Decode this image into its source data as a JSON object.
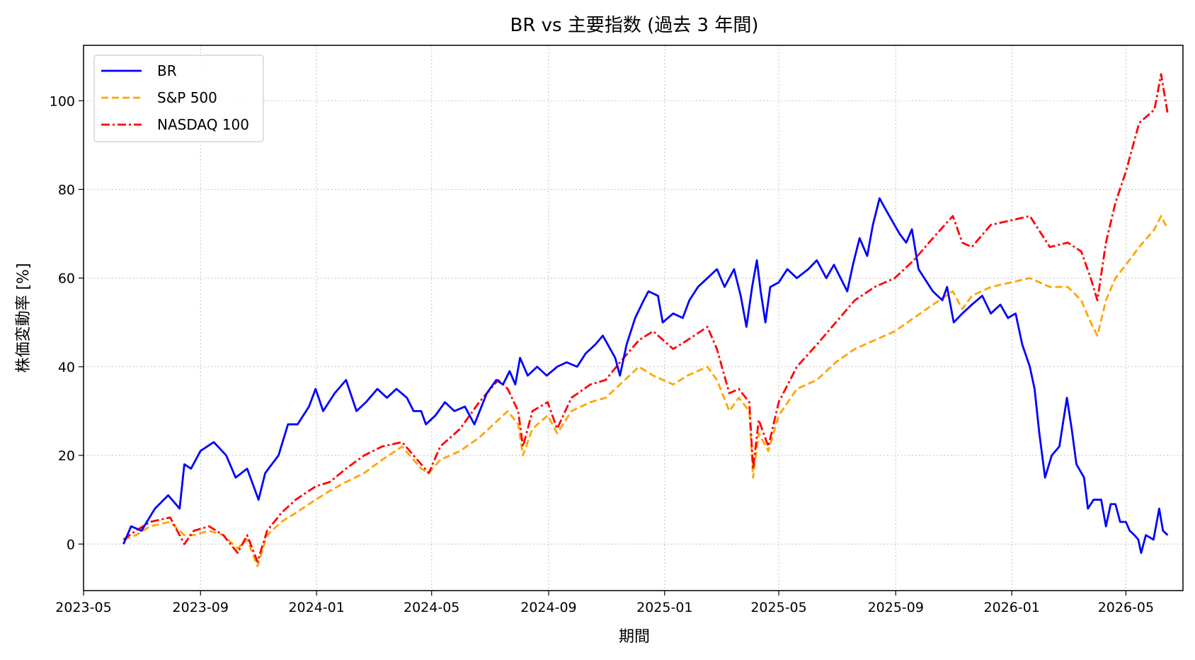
{
  "chart_data": {
    "type": "line",
    "title": "BR vs 主要指数 (過去 3 年間)",
    "xlabel": "期間",
    "ylabel": "株価変動率 [%]",
    "xlim": [
      "2023-05-01",
      "2026-06-30"
    ],
    "ylim": [
      -10.5,
      112.5
    ],
    "grid": true,
    "grid_style": "dotted",
    "legend_position": "top-left",
    "x_ticks": [
      "2023-05",
      "2023-09",
      "2024-01",
      "2024-05",
      "2024-09",
      "2025-01",
      "2025-05",
      "2025-09",
      "2026-01",
      "2026-05"
    ],
    "y_ticks": [
      0,
      20,
      40,
      60,
      80,
      100
    ],
    "series": [
      {
        "name": "BR",
        "color": "#0000ff",
        "dash": "solid",
        "points": [
          [
            "2023-06-12",
            0
          ],
          [
            "2023-06-20",
            4
          ],
          [
            "2023-07-01",
            3
          ],
          [
            "2023-07-15",
            8
          ],
          [
            "2023-07-29",
            11
          ],
          [
            "2023-08-10",
            8
          ],
          [
            "2023-08-15",
            18
          ],
          [
            "2023-08-22",
            17
          ],
          [
            "2023-09-01",
            21
          ],
          [
            "2023-09-15",
            23
          ],
          [
            "2023-09-28",
            20
          ],
          [
            "2023-10-08",
            15
          ],
          [
            "2023-10-20",
            17
          ],
          [
            "2023-11-01",
            10
          ],
          [
            "2023-11-08",
            16
          ],
          [
            "2023-11-22",
            20
          ],
          [
            "2023-12-02",
            27
          ],
          [
            "2023-12-12",
            27
          ],
          [
            "2023-12-24",
            31
          ],
          [
            "2023-12-31",
            35
          ],
          [
            "2024-01-08",
            30
          ],
          [
            "2024-01-20",
            34
          ],
          [
            "2024-02-01",
            37
          ],
          [
            "2024-02-12",
            30
          ],
          [
            "2024-02-22",
            32
          ],
          [
            "2024-03-05",
            35
          ],
          [
            "2024-03-15",
            33
          ],
          [
            "2024-03-25",
            35
          ],
          [
            "2024-04-05",
            33
          ],
          [
            "2024-04-12",
            30
          ],
          [
            "2024-04-20",
            30
          ],
          [
            "2024-04-25",
            27
          ],
          [
            "2024-05-05",
            29
          ],
          [
            "2024-05-15",
            32
          ],
          [
            "2024-05-25",
            30
          ],
          [
            "2024-06-05",
            31
          ],
          [
            "2024-06-15",
            27
          ],
          [
            "2024-06-28",
            34
          ],
          [
            "2024-07-08",
            37
          ],
          [
            "2024-07-15",
            36
          ],
          [
            "2024-07-22",
            39
          ],
          [
            "2024-07-28",
            36
          ],
          [
            "2024-08-02",
            42
          ],
          [
            "2024-08-10",
            38
          ],
          [
            "2024-08-20",
            40
          ],
          [
            "2024-08-30",
            38
          ],
          [
            "2024-09-10",
            40
          ],
          [
            "2024-09-20",
            41
          ],
          [
            "2024-10-01",
            40
          ],
          [
            "2024-10-10",
            43
          ],
          [
            "2024-10-20",
            45
          ],
          [
            "2024-10-28",
            47
          ],
          [
            "2024-11-10",
            42
          ],
          [
            "2024-11-15",
            38
          ],
          [
            "2024-11-22",
            45
          ],
          [
            "2024-12-01",
            51
          ],
          [
            "2024-12-10",
            55
          ],
          [
            "2024-12-15",
            57
          ],
          [
            "2024-12-25",
            56
          ],
          [
            "2024-12-30",
            50
          ],
          [
            "2025-01-10",
            52
          ],
          [
            "2025-01-20",
            51
          ],
          [
            "2025-01-27",
            55
          ],
          [
            "2025-02-05",
            58
          ],
          [
            "2025-02-15",
            60
          ],
          [
            "2025-02-25",
            62
          ],
          [
            "2025-03-05",
            58
          ],
          [
            "2025-03-15",
            62
          ],
          [
            "2025-03-22",
            56
          ],
          [
            "2025-03-28",
            49
          ],
          [
            "2025-04-03",
            58
          ],
          [
            "2025-04-08",
            64
          ],
          [
            "2025-04-12",
            57
          ],
          [
            "2025-04-17",
            50
          ],
          [
            "2025-04-22",
            58
          ],
          [
            "2025-05-01",
            59
          ],
          [
            "2025-05-10",
            62
          ],
          [
            "2025-05-20",
            60
          ],
          [
            "2025-06-01",
            62
          ],
          [
            "2025-06-10",
            64
          ],
          [
            "2025-06-20",
            60
          ],
          [
            "2025-06-28",
            63
          ],
          [
            "2025-07-05",
            60
          ],
          [
            "2025-07-12",
            57
          ],
          [
            "2025-07-18",
            63
          ],
          [
            "2025-07-25",
            69
          ],
          [
            "2025-08-02",
            65
          ],
          [
            "2025-08-08",
            72
          ],
          [
            "2025-08-15",
            78
          ],
          [
            "2025-08-20",
            76
          ],
          [
            "2025-08-28",
            73
          ],
          [
            "2025-09-05",
            70
          ],
          [
            "2025-09-12",
            68
          ],
          [
            "2025-09-18",
            71
          ],
          [
            "2025-09-25",
            62
          ],
          [
            "2025-10-01",
            60
          ],
          [
            "2025-10-10",
            57
          ],
          [
            "2025-10-20",
            55
          ],
          [
            "2025-10-25",
            58
          ],
          [
            "2025-11-01",
            50
          ],
          [
            "2025-11-10",
            52
          ],
          [
            "2025-11-20",
            54
          ],
          [
            "2025-12-01",
            56
          ],
          [
            "2025-12-10",
            52
          ],
          [
            "2025-12-20",
            54
          ],
          [
            "2025-12-28",
            51
          ],
          [
            "2026-01-05",
            52
          ],
          [
            "2026-01-12",
            45
          ],
          [
            "2026-01-20",
            40
          ],
          [
            "2026-01-25",
            35
          ],
          [
            "2026-01-30",
            25
          ],
          [
            "2026-02-05",
            15
          ],
          [
            "2026-02-12",
            20
          ],
          [
            "2026-02-20",
            22
          ],
          [
            "2026-02-28",
            33
          ],
          [
            "2026-03-05",
            26
          ],
          [
            "2026-03-10",
            18
          ],
          [
            "2026-03-18",
            15
          ],
          [
            "2026-03-22",
            8
          ],
          [
            "2026-03-28",
            10
          ],
          [
            "2026-04-05",
            10
          ],
          [
            "2026-04-10",
            4
          ],
          [
            "2026-04-15",
            9
          ],
          [
            "2026-04-20",
            9
          ],
          [
            "2026-04-25",
            5
          ],
          [
            "2026-05-01",
            5
          ],
          [
            "2026-05-05",
            3
          ],
          [
            "2026-05-10",
            2
          ],
          [
            "2026-05-14",
            1
          ],
          [
            "2026-05-17",
            -2
          ],
          [
            "2026-05-22",
            2
          ],
          [
            "2026-05-30",
            1
          ],
          [
            "2026-06-05",
            8
          ],
          [
            "2026-06-09",
            3
          ],
          [
            "2026-06-14",
            2
          ]
        ]
      },
      {
        "name": "S&P 500",
        "color": "#ffa500",
        "dash": "dashed",
        "points": [
          [
            "2023-06-12",
            1
          ],
          [
            "2023-06-25",
            2
          ],
          [
            "2023-07-10",
            4
          ],
          [
            "2023-07-31",
            5
          ],
          [
            "2023-08-15",
            2
          ],
          [
            "2023-08-25",
            2
          ],
          [
            "2023-09-10",
            3
          ],
          [
            "2023-09-25",
            2
          ],
          [
            "2023-10-10",
            -1
          ],
          [
            "2023-10-20",
            1
          ],
          [
            "2023-10-31",
            -5
          ],
          [
            "2023-11-10",
            2
          ],
          [
            "2023-11-25",
            5
          ],
          [
            "2023-12-10",
            7
          ],
          [
            "2023-12-31",
            10
          ],
          [
            "2024-01-15",
            12
          ],
          [
            "2024-02-01",
            14
          ],
          [
            "2024-02-20",
            16
          ],
          [
            "2024-03-10",
            19
          ],
          [
            "2024-03-31",
            22
          ],
          [
            "2024-04-20",
            17
          ],
          [
            "2024-04-28",
            16
          ],
          [
            "2024-05-10",
            19
          ],
          [
            "2024-05-31",
            21
          ],
          [
            "2024-06-20",
            24
          ],
          [
            "2024-07-10",
            28
          ],
          [
            "2024-07-20",
            30
          ],
          [
            "2024-07-31",
            27
          ],
          [
            "2024-08-05",
            20
          ],
          [
            "2024-08-15",
            26
          ],
          [
            "2024-08-31",
            29
          ],
          [
            "2024-09-10",
            25
          ],
          [
            "2024-09-25",
            30
          ],
          [
            "2024-10-15",
            32
          ],
          [
            "2024-10-31",
            33
          ],
          [
            "2024-11-15",
            36
          ],
          [
            "2024-12-05",
            40
          ],
          [
            "2024-12-20",
            38
          ],
          [
            "2025-01-10",
            36
          ],
          [
            "2025-01-25",
            38
          ],
          [
            "2025-02-15",
            40
          ],
          [
            "2025-02-25",
            37
          ],
          [
            "2025-03-10",
            30
          ],
          [
            "2025-03-20",
            33
          ],
          [
            "2025-03-31",
            30
          ],
          [
            "2025-04-04",
            15
          ],
          [
            "2025-04-10",
            25
          ],
          [
            "2025-04-20",
            21
          ],
          [
            "2025-05-01",
            29
          ],
          [
            "2025-05-20",
            35
          ],
          [
            "2025-06-10",
            37
          ],
          [
            "2025-06-30",
            41
          ],
          [
            "2025-07-20",
            44
          ],
          [
            "2025-08-10",
            46
          ],
          [
            "2025-08-31",
            48
          ],
          [
            "2025-09-20",
            51
          ],
          [
            "2025-10-10",
            54
          ],
          [
            "2025-10-31",
            57
          ],
          [
            "2025-11-10",
            53
          ],
          [
            "2025-11-20",
            56
          ],
          [
            "2025-12-10",
            58
          ],
          [
            "2025-12-31",
            59
          ],
          [
            "2026-01-20",
            60
          ],
          [
            "2026-02-10",
            58
          ],
          [
            "2026-03-01",
            58
          ],
          [
            "2026-03-15",
            55
          ],
          [
            "2026-03-25",
            50
          ],
          [
            "2026-04-01",
            47
          ],
          [
            "2026-04-10",
            55
          ],
          [
            "2026-04-20",
            60
          ],
          [
            "2026-05-01",
            63
          ],
          [
            "2026-05-15",
            67
          ],
          [
            "2026-05-31",
            71
          ],
          [
            "2026-06-07",
            74
          ],
          [
            "2026-06-14",
            71
          ]
        ]
      },
      {
        "name": "NASDAQ 100",
        "color": "#ff0000",
        "dash": "dashdot",
        "points": [
          [
            "2023-06-12",
            1
          ],
          [
            "2023-06-25",
            3
          ],
          [
            "2023-07-10",
            5
          ],
          [
            "2023-07-31",
            6
          ],
          [
            "2023-08-15",
            0
          ],
          [
            "2023-08-25",
            3
          ],
          [
            "2023-09-10",
            4
          ],
          [
            "2023-09-25",
            2
          ],
          [
            "2023-10-10",
            -2
          ],
          [
            "2023-10-20",
            2
          ],
          [
            "2023-10-31",
            -4
          ],
          [
            "2023-11-10",
            3
          ],
          [
            "2023-11-25",
            7
          ],
          [
            "2023-12-10",
            10
          ],
          [
            "2023-12-31",
            13
          ],
          [
            "2024-01-15",
            14
          ],
          [
            "2024-02-01",
            17
          ],
          [
            "2024-02-20",
            20
          ],
          [
            "2024-03-10",
            22
          ],
          [
            "2024-03-31",
            23
          ],
          [
            "2024-04-20",
            18
          ],
          [
            "2024-04-28",
            16
          ],
          [
            "2024-05-10",
            22
          ],
          [
            "2024-05-31",
            26
          ],
          [
            "2024-06-20",
            32
          ],
          [
            "2024-07-10",
            37
          ],
          [
            "2024-07-20",
            35
          ],
          [
            "2024-07-31",
            30
          ],
          [
            "2024-08-05",
            22
          ],
          [
            "2024-08-15",
            30
          ],
          [
            "2024-08-31",
            32
          ],
          [
            "2024-09-10",
            26
          ],
          [
            "2024-09-25",
            33
          ],
          [
            "2024-10-15",
            36
          ],
          [
            "2024-10-31",
            37
          ],
          [
            "2024-11-15",
            41
          ],
          [
            "2024-12-05",
            46
          ],
          [
            "2024-12-20",
            48
          ],
          [
            "2025-01-10",
            44
          ],
          [
            "2025-01-25",
            46
          ],
          [
            "2025-02-15",
            49
          ],
          [
            "2025-02-25",
            44
          ],
          [
            "2025-03-10",
            34
          ],
          [
            "2025-03-20",
            35
          ],
          [
            "2025-03-31",
            32
          ],
          [
            "2025-04-04",
            17
          ],
          [
            "2025-04-10",
            28
          ],
          [
            "2025-04-20",
            22
          ],
          [
            "2025-05-01",
            32
          ],
          [
            "2025-05-20",
            40
          ],
          [
            "2025-06-10",
            45
          ],
          [
            "2025-06-30",
            50
          ],
          [
            "2025-07-20",
            55
          ],
          [
            "2025-08-10",
            58
          ],
          [
            "2025-08-31",
            60
          ],
          [
            "2025-09-20",
            64
          ],
          [
            "2025-10-10",
            69
          ],
          [
            "2025-10-31",
            74
          ],
          [
            "2025-11-10",
            68
          ],
          [
            "2025-11-20",
            67
          ],
          [
            "2025-12-10",
            72
          ],
          [
            "2025-12-31",
            73
          ],
          [
            "2026-01-20",
            74
          ],
          [
            "2026-02-10",
            67
          ],
          [
            "2026-03-01",
            68
          ],
          [
            "2026-03-15",
            66
          ],
          [
            "2026-03-25",
            60
          ],
          [
            "2026-04-01",
            55
          ],
          [
            "2026-04-10",
            68
          ],
          [
            "2026-04-20",
            77
          ],
          [
            "2026-05-01",
            84
          ],
          [
            "2026-05-15",
            95
          ],
          [
            "2026-05-31",
            98
          ],
          [
            "2026-06-07",
            106
          ],
          [
            "2026-06-14",
            97
          ]
        ]
      }
    ]
  }
}
